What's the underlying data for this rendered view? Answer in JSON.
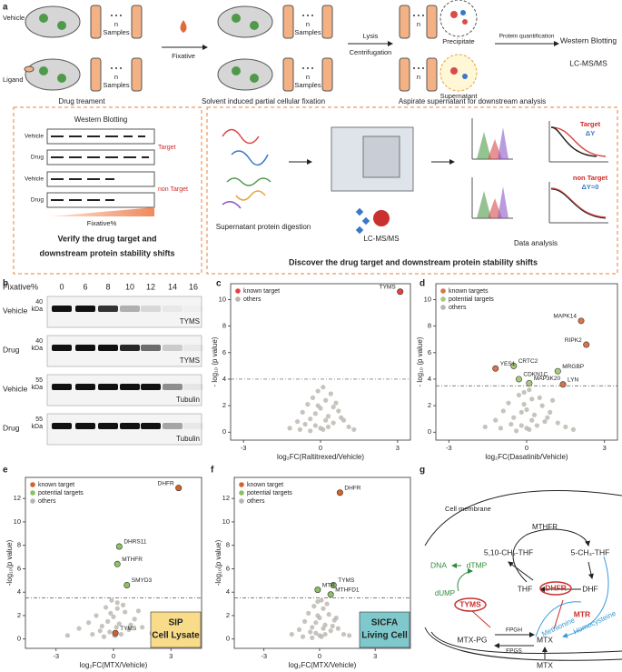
{
  "panel_labels": [
    "a",
    "b",
    "c",
    "d",
    "e",
    "f",
    "g"
  ],
  "panel_a": {
    "texts": [
      "Vehicle",
      "Ligand",
      "n",
      "Samples",
      "n",
      "Samples",
      "n",
      "Samples",
      "n",
      "Samples",
      "Fixative",
      "Lysis",
      "Centrifugation",
      "n",
      "n",
      "Precipitate",
      "Supernatant",
      "Protein quantification",
      "Western Blotting",
      "LC-MS/MS",
      "Drug treament",
      "Solvent induced partial cellular fixation",
      "Aspirate supernatant for downstream analysis",
      "Western Blotting",
      "Vehicle",
      "Drug",
      "Target",
      "Vehicle",
      "Drug",
      "non Target",
      "Fixative%",
      "Verify the drug target and",
      "downstream protein stability shifts",
      "Supernatant protein digestion",
      "LC-MS/MS",
      "Data analysis",
      "Discover  the drug target and downstream protein stability shifts",
      "Target",
      "ΔY",
      "non Target",
      "ΔY=0"
    ]
  },
  "panel_b": {
    "header": "Fixative%",
    "fixative": [
      "0",
      "6",
      "8",
      "10",
      "12",
      "14",
      "16"
    ],
    "rows": [
      {
        "condition": "Vehicle",
        "mw": "40",
        "unit": "kDa",
        "protein": "TYMS"
      },
      {
        "condition": "Drug",
        "mw": "40",
        "unit": "kDa",
        "protein": "TYMS"
      },
      {
        "condition": "Vehicle",
        "mw": "55",
        "unit": "kDa",
        "protein": "Tubulin"
      },
      {
        "condition": "Drug",
        "mw": "55",
        "unit": "kDa",
        "protein": "Tubulin"
      }
    ]
  },
  "chart_data": [
    {
      "type": "scatter",
      "xlabel": "log₂FC(Raltitrexed/Vehicle)",
      "ylabel": "- log₁₀ (p value)",
      "xlim": [
        -3.5,
        3.5
      ],
      "ylim": [
        -0.6,
        11.2
      ],
      "xticks": [
        -3,
        0,
        3
      ],
      "yticks": [
        0,
        2,
        4,
        6,
        8,
        10
      ],
      "hline": 4,
      "legend": "upper left",
      "series": [
        {
          "name": "known target",
          "color": "#e8413a",
          "x": [
            3.1
          ],
          "values": [
            10.6
          ],
          "labels": [
            "TYMS"
          ]
        },
        {
          "name": "others",
          "color": "#b9b4ad",
          "x": [
            -1.2,
            -0.9,
            -0.7,
            -0.5,
            -0.4,
            -0.3,
            -0.2,
            -0.1,
            0,
            0.1,
            0.2,
            0.3,
            0.4,
            0.5,
            0.7,
            0.9,
            1.1,
            1.3,
            -0.6,
            -0.2,
            0.1,
            0.3,
            0.6,
            -0.8,
            0.8,
            -0.4,
            0.2,
            0,
            -0.1,
            0.5
          ],
          "values": [
            0.3,
            0.8,
            1.5,
            2.1,
            1.0,
            2.6,
            0.5,
            3.1,
            1.8,
            0.2,
            2.4,
            1.2,
            2.9,
            0.7,
            1.6,
            0.9,
            0.4,
            0.2,
            0.6,
            1.4,
            3.4,
            0.4,
            2.2,
            0.2,
            1.1,
            0.1,
            0.9,
            0.3,
            2.0,
            1.9
          ]
        }
      ]
    },
    {
      "type": "scatter",
      "xlabel": "log₂FC(Dasatinib/Vehicle)",
      "ylabel": "- log₁₀ (p value)",
      "xlim": [
        -3.5,
        3.5
      ],
      "ylim": [
        -0.6,
        11.2
      ],
      "xticks": [
        -3,
        0,
        3
      ],
      "yticks": [
        0,
        2,
        4,
        6,
        8,
        10
      ],
      "hline": 3.5,
      "legend": "upper left",
      "series": [
        {
          "name": "known targets",
          "color": "#d9734a",
          "x": [
            2.1,
            2.3,
            -1.2,
            1.4
          ],
          "values": [
            8.4,
            6.6,
            4.8,
            3.6
          ],
          "labels": [
            "MAPK14",
            "RIPK2",
            "YES1",
            "LYN"
          ]
        },
        {
          "name": "potential targets",
          "color": "#a9c97a",
          "x": [
            -0.5,
            1.2,
            -0.3,
            0.1
          ],
          "values": [
            5.0,
            4.6,
            4.0,
            3.7
          ],
          "labels": [
            "CRTC2",
            "MRGBP",
            "CDKN1C",
            "MAP3K20"
          ]
        },
        {
          "name": "others",
          "color": "#b9b4ad",
          "x": [
            -1.6,
            -1.2,
            -0.9,
            -0.7,
            -0.5,
            -0.3,
            -0.2,
            -0.1,
            0,
            0.1,
            0.2,
            0.3,
            0.5,
            0.7,
            0.9,
            1.2,
            1.5,
            1.8,
            -0.6,
            -0.2,
            0.1,
            0.4,
            0.6,
            -1.0,
            0.8,
            -0.4,
            0.2,
            0,
            -0.1,
            1.0
          ],
          "values": [
            0.4,
            0.9,
            1.6,
            2.2,
            1.1,
            2.8,
            0.5,
            3.0,
            1.7,
            0.2,
            2.5,
            1.3,
            2.6,
            0.8,
            1.5,
            0.7,
            0.4,
            0.2,
            0.6,
            1.5,
            3.2,
            0.5,
            2.0,
            0.3,
            1.1,
            0.1,
            0.9,
            0.3,
            2.1,
            2.4
          ]
        }
      ]
    },
    {
      "type": "scatter",
      "xlabel": "log₂FC(MTX/Vehicle)",
      "ylabel": "-log₁₀(p value)",
      "xlim": [
        -4.6,
        4.6
      ],
      "ylim": [
        -0.8,
        13.8
      ],
      "xticks": [
        -3,
        0,
        3
      ],
      "yticks": [
        0,
        2,
        4,
        6,
        8,
        10,
        12
      ],
      "hline": 3.5,
      "legend": "upper left",
      "box_text": [
        "SIP",
        "Cell Lysate"
      ],
      "box_color": "#f9dc8a",
      "series": [
        {
          "name": "known target",
          "color": "#d4622b",
          "x": [
            3.4,
            0.1
          ],
          "values": [
            12.9,
            0.5
          ],
          "labels": [
            "DHFR",
            "TYMS"
          ]
        },
        {
          "name": "potential targets",
          "color": "#8cc063",
          "x": [
            0.3,
            0.2,
            0.7
          ],
          "values": [
            7.9,
            6.4,
            4.6
          ],
          "labels": [
            "DHRS11",
            "MTHFR",
            "SMYD3"
          ]
        },
        {
          "name": "others",
          "color": "#b9b4ad",
          "x": [
            -2.4,
            -1.8,
            -1.3,
            -0.9,
            -0.6,
            -0.4,
            -0.2,
            -0.1,
            0,
            0.1,
            0.2,
            0.3,
            0.5,
            0.8,
            1.1,
            1.5,
            2.0,
            2.6,
            -0.7,
            -0.3,
            0.2,
            0.4,
            0.6,
            -1.1,
            0.9,
            -0.5,
            0.15,
            0.05,
            -0.15,
            1.3
          ],
          "values": [
            0.3,
            0.9,
            1.4,
            2.0,
            1.1,
            2.7,
            0.6,
            3.3,
            1.9,
            0.3,
            2.6,
            1.3,
            2.9,
            0.8,
            1.7,
            1.0,
            0.5,
            0.2,
            0.7,
            1.5,
            3.1,
            0.4,
            2.3,
            0.4,
            1.2,
            0.2,
            1.0,
            0.3,
            2.2,
            2.4
          ]
        }
      ]
    },
    {
      "type": "scatter",
      "xlabel": "log₂FC(MTX/Vehicle)",
      "ylabel": "-log₁₀(p value)",
      "xlim": [
        -4.6,
        4.9
      ],
      "ylim": [
        -0.8,
        13.8
      ],
      "xticks": [
        -3,
        0,
        3
      ],
      "yticks": [
        0,
        2,
        4,
        6,
        8,
        10,
        12
      ],
      "hline": 3.5,
      "legend": "upper left",
      "box_text": [
        "SICFA",
        "Living Cell"
      ],
      "box_color": "#7fc8cc",
      "series": [
        {
          "name": "known target",
          "color": "#d4622b",
          "x": [
            1.1
          ],
          "values": [
            12.5
          ],
          "labels": [
            "DHFR"
          ]
        },
        {
          "name": "potential targets",
          "color": "#8cc063",
          "x": [
            0.75,
            0.6,
            -0.1
          ],
          "values": [
            4.6,
            3.8,
            4.2
          ],
          "labels": [
            "TYMS",
            "MTHFD1",
            "MTR"
          ]
        },
        {
          "name": "others",
          "color": "#b9b4ad",
          "x": [
            -1.5,
            -1.1,
            -0.8,
            -0.6,
            -0.4,
            -0.3,
            -0.2,
            -0.1,
            0,
            0.1,
            0.2,
            0.3,
            0.4,
            0.6,
            0.8,
            1.0,
            1.3,
            1.6,
            -0.5,
            -0.2,
            0.1,
            0.3,
            0.5,
            -0.9,
            0.7,
            -0.4,
            0.2,
            0,
            -0.1,
            0.9
          ],
          "values": [
            0.4,
            0.8,
            1.5,
            2.2,
            1.0,
            2.8,
            0.5,
            3.2,
            1.8,
            0.2,
            2.6,
            1.2,
            3.0,
            0.7,
            1.6,
            0.9,
            0.4,
            0.3,
            0.6,
            1.4,
            3.3,
            0.4,
            2.1,
            0.2,
            1.1,
            0.1,
            0.9,
            0.3,
            2.0,
            1.8
          ]
        }
      ]
    }
  ],
  "panel_g": {
    "texts": [
      "Cell membrane",
      "MTHFR",
      "5,10-CH₂-THF",
      "5-CH₃-THF",
      "DNA",
      "dTMP",
      "dUMP",
      "TYMS",
      "THF",
      "DHFR",
      "DHF",
      "MTR",
      "Methionine",
      "Homocysteine",
      "FPGH",
      "FPGS",
      "MTX-PG",
      "MTX",
      "MTX"
    ]
  }
}
